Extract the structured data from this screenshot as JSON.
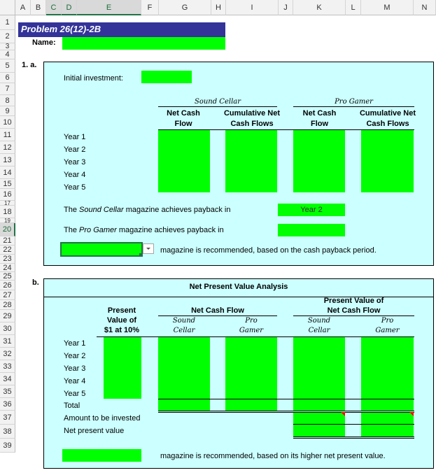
{
  "sheet": {
    "columns": [
      "A",
      "B",
      "C",
      "D",
      "E",
      "F",
      "G",
      "H",
      "I",
      "J",
      "K",
      "L",
      "M",
      "N"
    ],
    "rows": [
      "1",
      "2",
      "3",
      "4",
      "5",
      "6",
      "7",
      "8",
      "9",
      "10",
      "11",
      "12",
      "13",
      "14",
      "15",
      "16",
      "17",
      "18",
      "19",
      "20",
      "21",
      "22",
      "23",
      "24",
      "25",
      "26",
      "27",
      "28",
      "29",
      "30",
      "31",
      "32",
      "33",
      "34",
      "35",
      "36",
      "37",
      "38",
      "39"
    ]
  },
  "title": "Problem 26(12)-2B",
  "name_label": "Name:",
  "part_a": {
    "label": "1. a.",
    "initial_investment_label": "Initial investment:",
    "sound_cellar_header": "Sound Cellar",
    "pro_gamer_header": "Pro Gamer",
    "net_cash_line1": "Net Cash",
    "net_cash_line2": "Flow",
    "cumulative_line1": "Cumulative Net",
    "cumulative_line2": "Cash Flows",
    "years": [
      "Year 1",
      "Year 2",
      "Year 3",
      "Year 4",
      "Year 5"
    ],
    "sound_payback_prefix": "The",
    "sound_payback_name": "Sound Cellar",
    "sound_payback_suffix": "magazine achieves payback in",
    "sound_payback_value": "Year 2",
    "pro_payback_prefix": "The",
    "pro_payback_name": "Pro Gamer",
    "pro_payback_suffix": "magazine achieves payback in",
    "recommend_text": "magazine is recommended, based on the cash payback period."
  },
  "part_b": {
    "label": "b.",
    "title": "Net Present Value Analysis",
    "pv_line1": "Present",
    "pv_line2": "Value of",
    "pv_line3": "$1 at 10%",
    "ncf_header": "Net Cash Flow",
    "pvncf_line1": "Present Value of",
    "pvncf_line2": "Net Cash Flow",
    "sound_line1": "Sound",
    "sound_line2": "Cellar",
    "pro_line1": "Pro",
    "pro_line2": "Gamer",
    "years": [
      "Year 1",
      "Year 2",
      "Year 3",
      "Year 4",
      "Year 5"
    ],
    "total_label": "Total",
    "amount_label": "Amount to be invested",
    "npv_label": "Net present value",
    "recommend_text": "magazine is recommended, based on its higher net present value."
  },
  "colors": {
    "input_fill": "#00ff00",
    "panel_fill": "#ccffff",
    "title_fill": "#333399",
    "header_select": "#217346"
  }
}
